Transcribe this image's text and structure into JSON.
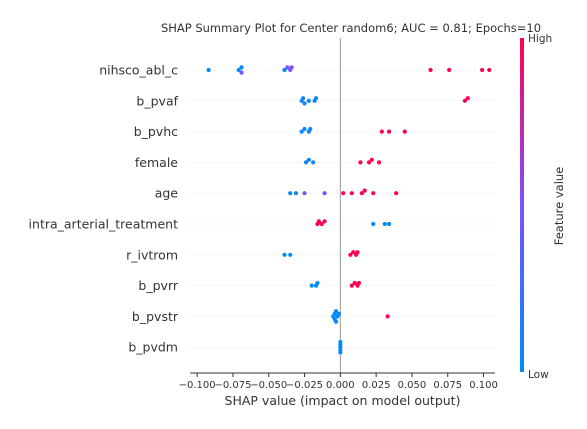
{
  "chart_data": {
    "type": "scatter",
    "title": "SHAP Summary Plot for Center random6; AUC = 0.81; Epochs=10",
    "xlabel": "SHAP value (impact on model output)",
    "xlim": [
      -0.105,
      0.108
    ],
    "xticks": [
      -0.1,
      -0.075,
      -0.05,
      -0.025,
      0.0,
      0.025,
      0.05,
      0.075,
      0.1
    ],
    "xtick_labels": [
      "−0.100",
      "−0.075",
      "−0.050",
      "−0.025",
      "0.000",
      "0.025",
      "0.050",
      "0.075",
      "0.100"
    ],
    "grid": false,
    "colorbar": {
      "label": "Feature value",
      "high_label": "High",
      "low_label": "Low",
      "low_color": "#008bfb",
      "mid_color": "#7c52ff",
      "high_color": "#ff0052"
    },
    "features": [
      {
        "name": "nihsco_abl_c",
        "points": [
          [
            -0.092,
            0.0
          ],
          [
            -0.071,
            0.0
          ],
          [
            -0.069,
            0.0
          ],
          [
            -0.069,
            0.5
          ],
          [
            -0.039,
            0.0
          ],
          [
            -0.037,
            0.45
          ],
          [
            -0.035,
            0.5
          ],
          [
            -0.034,
            0.55
          ],
          [
            0.063,
            1.0
          ],
          [
            0.076,
            1.0
          ],
          [
            0.099,
            1.0
          ],
          [
            0.104,
            1.0
          ]
        ]
      },
      {
        "name": "b_pvaf",
        "points": [
          [
            -0.027,
            0.05
          ],
          [
            -0.025,
            0.1
          ],
          [
            -0.026,
            0.05
          ],
          [
            -0.022,
            0.05
          ],
          [
            -0.018,
            0.05
          ],
          [
            -0.017,
            0.05
          ],
          [
            0.087,
            1.0
          ],
          [
            0.089,
            1.0
          ]
        ]
      },
      {
        "name": "b_pvhc",
        "points": [
          [
            -0.027,
            0.05
          ],
          [
            -0.025,
            0.05
          ],
          [
            -0.022,
            0.05
          ],
          [
            -0.021,
            0.05
          ],
          [
            0.029,
            1.0
          ],
          [
            0.034,
            1.0
          ],
          [
            0.045,
            1.0
          ]
        ]
      },
      {
        "name": "female",
        "points": [
          [
            -0.024,
            0.05
          ],
          [
            -0.022,
            0.05
          ],
          [
            -0.019,
            0.05
          ],
          [
            0.014,
            1.0
          ],
          [
            0.02,
            1.0
          ],
          [
            0.022,
            1.0
          ],
          [
            0.027,
            1.0
          ]
        ]
      },
      {
        "name": "age",
        "points": [
          [
            -0.035,
            0.05
          ],
          [
            -0.031,
            0.05
          ],
          [
            -0.025,
            0.45
          ],
          [
            -0.011,
            0.5
          ],
          [
            0.002,
            1.0
          ],
          [
            0.008,
            1.0
          ],
          [
            0.015,
            1.0
          ],
          [
            0.017,
            1.0
          ],
          [
            0.023,
            1.0
          ],
          [
            0.039,
            1.0
          ]
        ]
      },
      {
        "name": "intra_arterial_treatment",
        "points": [
          [
            -0.016,
            1.0
          ],
          [
            -0.015,
            1.0
          ],
          [
            -0.013,
            1.0
          ],
          [
            -0.011,
            1.0
          ],
          [
            0.023,
            0.0
          ],
          [
            0.031,
            0.0
          ],
          [
            0.034,
            0.0
          ]
        ]
      },
      {
        "name": "r_ivtrom",
        "points": [
          [
            -0.039,
            0.0
          ],
          [
            -0.035,
            0.0
          ],
          [
            0.007,
            1.0
          ],
          [
            0.009,
            1.0
          ],
          [
            0.011,
            1.0
          ],
          [
            0.012,
            1.0
          ]
        ]
      },
      {
        "name": "b_pvrr",
        "points": [
          [
            -0.02,
            0.0
          ],
          [
            -0.017,
            0.0
          ],
          [
            -0.016,
            0.0
          ],
          [
            0.008,
            1.0
          ],
          [
            0.01,
            1.0
          ],
          [
            0.012,
            1.0
          ],
          [
            0.013,
            1.0
          ]
        ]
      },
      {
        "name": "b_pvstr",
        "points": [
          [
            -0.005,
            0.0
          ],
          [
            -0.004,
            0.0
          ],
          [
            -0.003,
            0.0
          ],
          [
            -0.002,
            0.0
          ],
          [
            -0.004,
            0.0
          ],
          [
            -0.001,
            0.0
          ],
          [
            -0.003,
            0.05
          ],
          [
            0.033,
            1.0
          ]
        ]
      },
      {
        "name": "b_pvdm",
        "points": [
          [
            0.0,
            0.0
          ],
          [
            0.0,
            0.0
          ],
          [
            0.0,
            0.0
          ],
          [
            0.0,
            0.0
          ],
          [
            0.0,
            0.0
          ]
        ]
      }
    ]
  }
}
